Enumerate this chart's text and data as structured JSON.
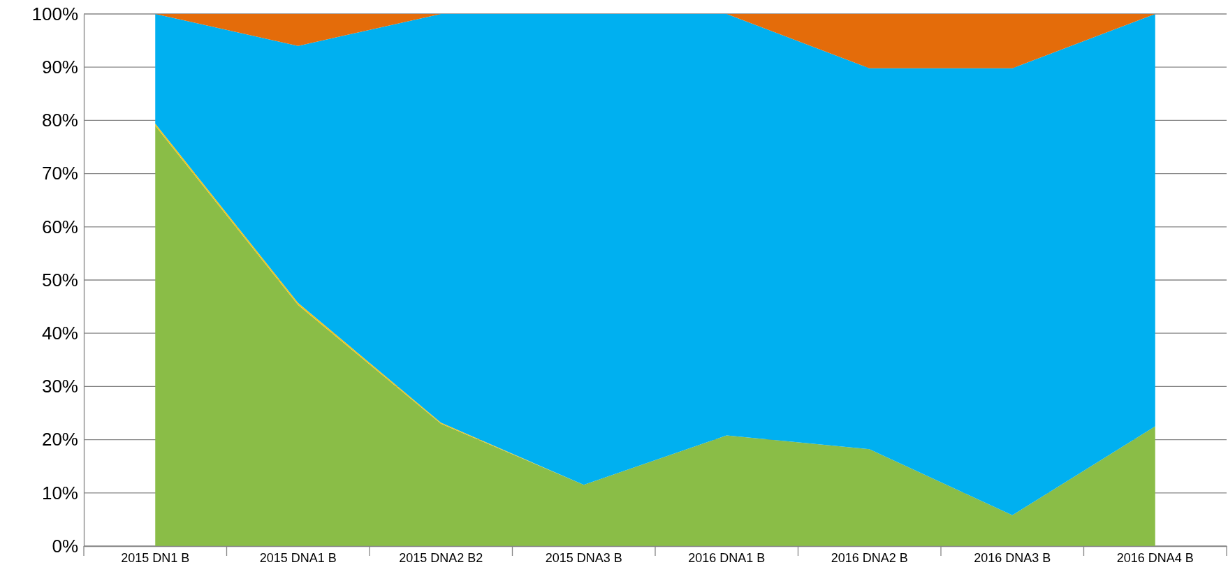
{
  "chart_data": {
    "type": "area",
    "stacked": true,
    "categories": [
      "2015 DN1 B",
      "2015 DNA1 B",
      "2015 DNA2 B2",
      "2015 DNA3 B",
      "2016 DNA1 B",
      "2016 DNA2 B",
      "2016 DNA3 B",
      "2016 DNA4 B"
    ],
    "series": [
      {
        "color": "#8abd47",
        "values": [
          79,
          45.3,
          23,
          11.5,
          20.8,
          18.2,
          5.8,
          22.5
        ]
      },
      {
        "color": "#f5c518",
        "values": [
          0.4,
          0.4,
          0.2,
          0,
          0,
          0,
          0,
          0
        ]
      },
      {
        "color": "#00b0f0",
        "values": [
          20.6,
          48.3,
          76.8,
          88.5,
          79.2,
          71.6,
          84,
          77.5
        ]
      },
      {
        "color": "#e46c0a",
        "values": [
          0,
          6,
          0,
          0,
          0,
          10.2,
          10.2,
          0
        ]
      }
    ],
    "ylim": [
      0,
      100
    ],
    "yticks": [
      {
        "value": 0,
        "label": "0%"
      },
      {
        "value": 10,
        "label": "10%"
      },
      {
        "value": 20,
        "label": "20%"
      },
      {
        "value": 30,
        "label": "30%"
      },
      {
        "value": 40,
        "label": "40%"
      },
      {
        "value": 50,
        "label": "50%"
      },
      {
        "value": 60,
        "label": "60%"
      },
      {
        "value": 70,
        "label": "70%"
      },
      {
        "value": 80,
        "label": "80%"
      },
      {
        "value": 90,
        "label": "90%"
      },
      {
        "value": 100,
        "label": "100%"
      }
    ],
    "grid": "y"
  }
}
